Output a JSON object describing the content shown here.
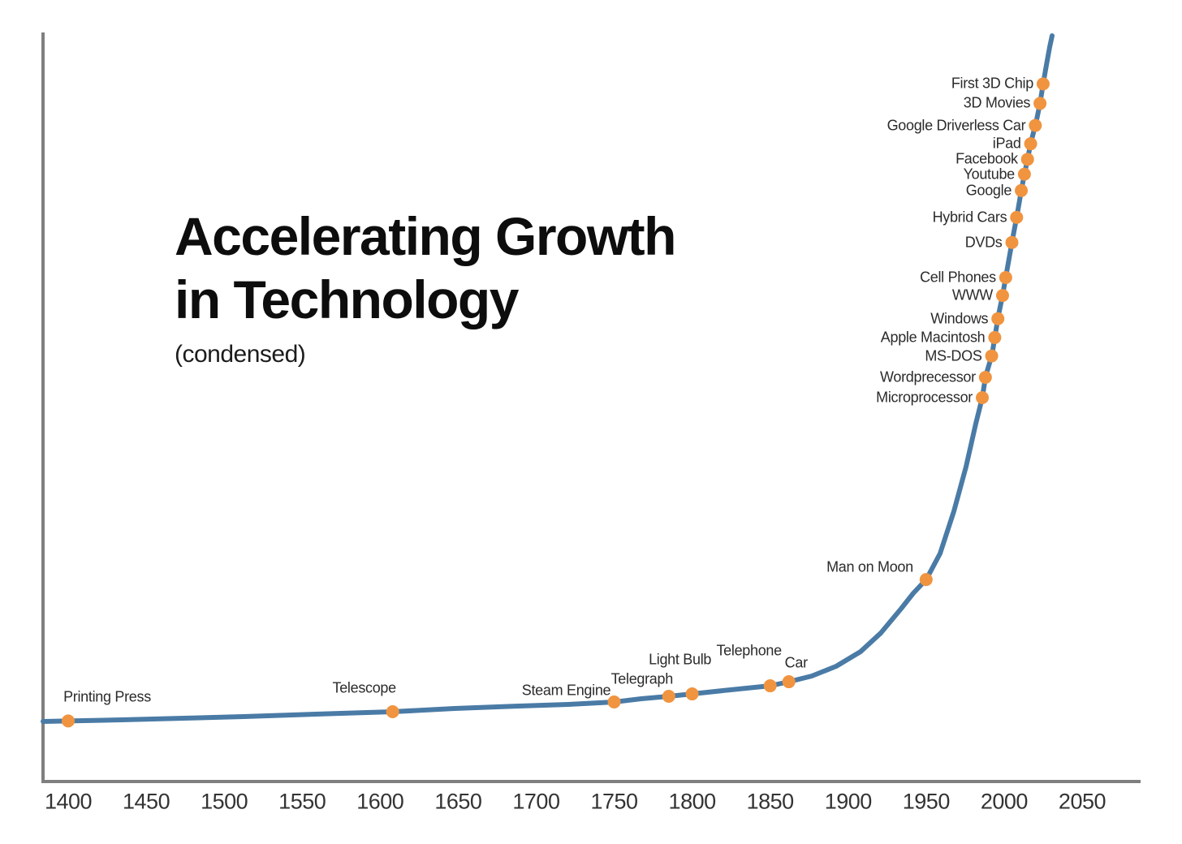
{
  "title": {
    "line1": "Accelerating Growth",
    "line2": "in Technology",
    "subtitle": "(condensed)"
  },
  "colors": {
    "curve": "#4a7ba6",
    "dot": "#f09440",
    "axis": "#7f7f7f",
    "tick_text": "#333333",
    "label_text": "#2b2b2b",
    "background": "#ffffff"
  },
  "chart_data": {
    "type": "line",
    "title": "Accelerating Growth in Technology",
    "subtitle": "(condensed)",
    "xlabel": "",
    "ylabel": "",
    "legend": "none",
    "grid": false,
    "x_ticks": [
      1400,
      1450,
      1500,
      1550,
      1600,
      1650,
      1700,
      1750,
      1800,
      1850,
      1900,
      1950,
      2000,
      2050
    ],
    "x_axis_range_drawn": [
      1384,
      2088
    ],
    "y_axis_labeled": false,
    "curve_description": "Single exponential-style growth curve: nearly flat from 1400 to ~1870, bends upward around 1900-1950, near-vertical after ~1985",
    "milestones": [
      {
        "label": "Printing Press",
        "year": 1400,
        "label_side": "above"
      },
      {
        "label": "Telescope",
        "year": 1608,
        "label_side": "above"
      },
      {
        "label": "Steam Engine",
        "year": 1750,
        "label_side": "above"
      },
      {
        "label": "Telegraph",
        "year": 1785,
        "label_side": "above"
      },
      {
        "label": "Light Bulb",
        "year": 1800,
        "label_side": "above"
      },
      {
        "label": "Telephone",
        "year": 1850,
        "label_side": "above"
      },
      {
        "label": "Car",
        "year": 1862,
        "label_side": "above"
      },
      {
        "label": "Man on Moon",
        "year": 1950,
        "label_side": "left"
      },
      {
        "label": "Microprocessor",
        "year": 1986,
        "label_side": "left"
      },
      {
        "label": "Wordprecessor",
        "year": 1988,
        "label_side": "left"
      },
      {
        "label": "MS-DOS",
        "year": 1992,
        "label_side": "left"
      },
      {
        "label": "Apple Macintosh",
        "year": 1994,
        "label_side": "left"
      },
      {
        "label": "Windows",
        "year": 1996,
        "label_side": "left"
      },
      {
        "label": "WWW",
        "year": 1999,
        "label_side": "left"
      },
      {
        "label": "Cell Phones",
        "year": 2001,
        "label_side": "left"
      },
      {
        "label": "DVDs",
        "year": 2005,
        "label_side": "left"
      },
      {
        "label": "Hybrid Cars",
        "year": 2008,
        "label_side": "left"
      },
      {
        "label": "Google",
        "year": 2011,
        "label_side": "left"
      },
      {
        "label": "Youtube",
        "year": 2013,
        "label_side": "left"
      },
      {
        "label": "Facebook",
        "year": 2015,
        "label_side": "left"
      },
      {
        "label": "iPad",
        "year": 2017,
        "label_side": "left"
      },
      {
        "label": "Google Driverless Car",
        "year": 2020,
        "label_side": "left"
      },
      {
        "label": "3D Movies",
        "year": 2023,
        "label_side": "left"
      },
      {
        "label": "First 3D Chip",
        "year": 2025,
        "label_side": "left"
      }
    ]
  }
}
